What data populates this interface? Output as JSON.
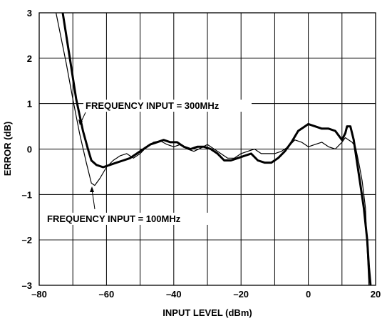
{
  "chart_data": {
    "type": "line",
    "xlabel": "INPUT LEVEL (dBm)",
    "ylabel": "ERROR (dB)",
    "xlim": [
      -80,
      20
    ],
    "ylim": [
      -3,
      3
    ],
    "xticks": [
      -80,
      -60,
      -40,
      -20,
      0,
      20
    ],
    "xtick_labels": [
      "–80",
      "–60",
      "–40",
      "–20",
      "0",
      "20"
    ],
    "yticks": [
      3,
      2,
      1,
      0,
      -1,
      -2,
      -3
    ],
    "ytick_labels": [
      "3",
      "2",
      "1",
      "0",
      "–1",
      "–2",
      "–3"
    ],
    "grid": true,
    "annotations": [
      {
        "text": "FREQUENCY INPUT = 300MHz",
        "series": "300"
      },
      {
        "text": "FREQUENCY INPUT = 100MHz",
        "series": "100"
      }
    ],
    "series": [
      {
        "id": "100",
        "x": [
          -75,
          -72,
          -70,
          -68,
          -66,
          -64.5,
          -63.5,
          -62,
          -60,
          -58,
          -56,
          -54,
          -52,
          -50,
          -48,
          -46,
          -44,
          -42,
          -40,
          -38,
          -36,
          -34,
          -32,
          -30,
          -28,
          -26,
          -24,
          -22,
          -20,
          -18,
          -16,
          -14,
          -12,
          -10,
          -8,
          -6,
          -4,
          -2,
          0,
          2,
          4,
          6,
          8,
          10,
          11,
          12,
          13,
          14,
          15,
          16,
          17,
          17.5,
          18
        ],
        "y": [
          3.0,
          1.9,
          1.1,
          0.35,
          -0.3,
          -0.75,
          -0.8,
          -0.65,
          -0.4,
          -0.25,
          -0.15,
          -0.1,
          -0.2,
          -0.1,
          0.05,
          0.15,
          0.18,
          0.1,
          0.05,
          0.1,
          0.0,
          -0.05,
          0.02,
          0.1,
          0.0,
          -0.1,
          -0.2,
          -0.2,
          -0.1,
          -0.05,
          0.0,
          -0.1,
          -0.1,
          -0.1,
          -0.05,
          0.05,
          0.2,
          0.15,
          0.05,
          0.1,
          0.15,
          0.05,
          0.0,
          0.15,
          0.25,
          0.2,
          0.15,
          0.05,
          -0.3,
          -0.7,
          -1.3,
          -2.2,
          -3.0
        ]
      },
      {
        "id": "300",
        "x": [
          -73,
          -71,
          -69,
          -67,
          -65.5,
          -64.5,
          -63,
          -61,
          -59,
          -57,
          -55,
          -53,
          -51,
          -49,
          -47,
          -45,
          -43,
          -41,
          -39,
          -37,
          -35,
          -33,
          -31,
          -29,
          -27,
          -25,
          -23,
          -21,
          -19,
          -17,
          -15,
          -13,
          -11,
          -9,
          -7,
          -5,
          -3,
          -1,
          0,
          2,
          4,
          6,
          8,
          10,
          11,
          11.5,
          12.5,
          13.5,
          14.5,
          15.5,
          16.5,
          17.5,
          18,
          18.5
        ],
        "y": [
          3.0,
          2.05,
          1.1,
          0.4,
          0.0,
          -0.25,
          -0.35,
          -0.4,
          -0.35,
          -0.3,
          -0.25,
          -0.2,
          -0.1,
          0.0,
          0.1,
          0.15,
          0.2,
          0.15,
          0.15,
          0.05,
          0.0,
          0.05,
          0.05,
          0.0,
          -0.1,
          -0.25,
          -0.25,
          -0.2,
          -0.15,
          -0.1,
          -0.25,
          -0.3,
          -0.3,
          -0.2,
          -0.05,
          0.15,
          0.4,
          0.5,
          0.55,
          0.5,
          0.45,
          0.45,
          0.4,
          0.2,
          0.35,
          0.5,
          0.5,
          0.2,
          -0.3,
          -0.8,
          -1.3,
          -2.0,
          -2.6,
          -3.0
        ]
      }
    ]
  }
}
